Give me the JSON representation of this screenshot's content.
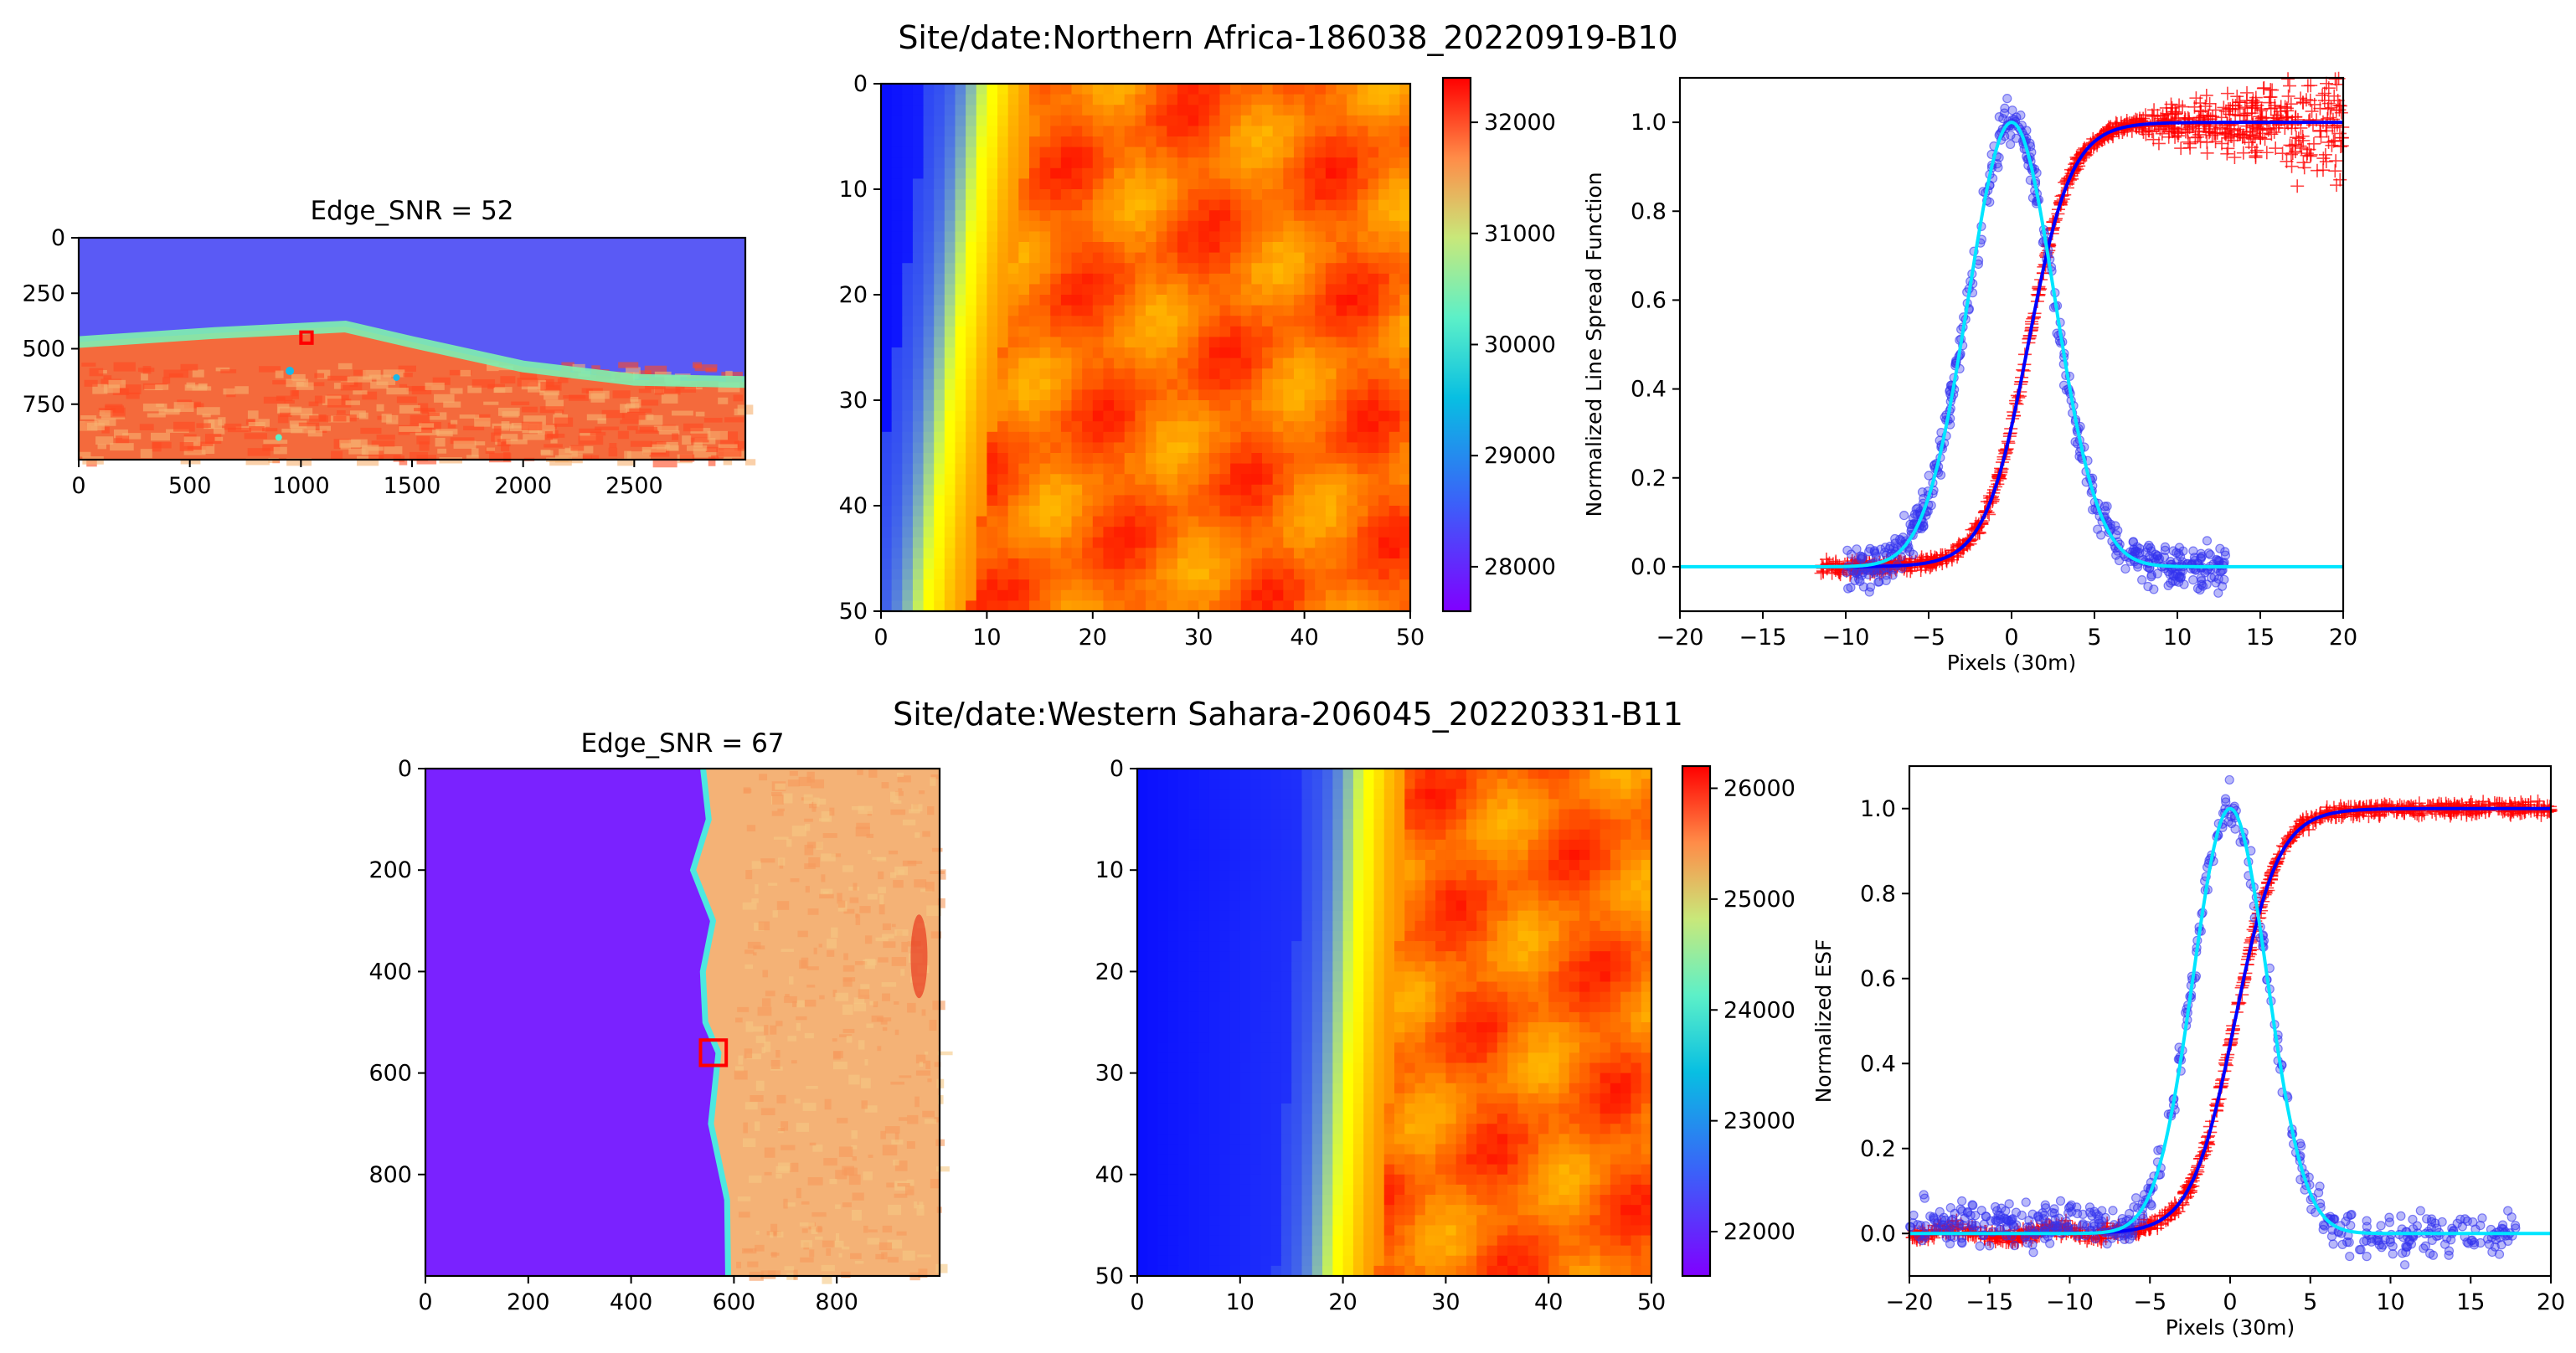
{
  "chart_data": [
    {
      "type": "heatmap",
      "panel": "overview",
      "suptitle": "Site/date:Northern Africa-186038_20220919-B10",
      "title": "Edge_SNR = 52",
      "xlim": [
        0,
        3000
      ],
      "ylim": [
        1000,
        0
      ],
      "xticks": [
        "0",
        "500",
        "1000",
        "1500",
        "2000",
        "2500"
      ],
      "yticks": [
        "0",
        "250",
        "500",
        "750"
      ],
      "xtick_values": [
        0,
        500,
        1000,
        1500,
        2000,
        2500
      ],
      "ytick_values": [
        0,
        250,
        500,
        750
      ],
      "colormap": "rainbow",
      "edge_profile": [
        [
          0,
          470
        ],
        [
          600,
          430
        ],
        [
          1200,
          400
        ],
        [
          1500,
          470
        ],
        [
          2000,
          580
        ],
        [
          2500,
          640
        ],
        [
          3000,
          650
        ]
      ],
      "roi_box": {
        "x": [
          1000,
          1050
        ],
        "y": [
          425,
          475
        ],
        "color": "#ff0000"
      }
    },
    {
      "type": "heatmap",
      "panel": "zoom",
      "xlim": [
        0,
        50
      ],
      "ylim": [
        50,
        0
      ],
      "xticks": [
        "0",
        "10",
        "20",
        "30",
        "40",
        "50"
      ],
      "yticks": [
        "0",
        "10",
        "20",
        "30",
        "40",
        "50"
      ],
      "xtick_values": [
        0,
        10,
        20,
        30,
        40,
        50
      ],
      "ytick_values": [
        0,
        10,
        20,
        30,
        40,
        50
      ],
      "edge_column_top": 11,
      "edge_column_bottom": 5,
      "value_range": [
        27600,
        32400
      ],
      "colorbar_ticks": [
        "28000",
        "29000",
        "30000",
        "31000",
        "32000"
      ],
      "colorbar_values": [
        28000,
        29000,
        30000,
        31000,
        32000
      ]
    },
    {
      "type": "scatter",
      "panel": "profile",
      "xlabel": "Pixels (30m)",
      "ylabel": "Normalized Line Spread Function",
      "xlim": [
        -20,
        20
      ],
      "ylim": [
        -0.1,
        1.1
      ],
      "xticks": [
        "−20",
        "−15",
        "−10",
        "−5",
        "0",
        "5",
        "10",
        "15",
        "20"
      ],
      "yticks": [
        "0.0",
        "0.2",
        "0.4",
        "0.6",
        "0.8",
        "1.0"
      ],
      "xtick_values": [
        -20,
        -15,
        -10,
        -5,
        0,
        5,
        10,
        15,
        20
      ],
      "ytick_values": [
        0,
        0.2,
        0.4,
        0.6,
        0.8,
        1.0
      ],
      "grid": true,
      "series": [
        {
          "name": "ESF samples",
          "marker": "+",
          "color": "#ff0000",
          "x_range": [
            -11.5,
            20
          ],
          "center": 1.0,
          "width": 2.2
        },
        {
          "name": "ESF fit",
          "style": "line",
          "color": "#0000ff",
          "x_range": [
            -11.5,
            20
          ],
          "center": 1.0,
          "width": 2.2
        },
        {
          "name": "LSF samples",
          "marker": "o",
          "color": "#3333ee",
          "x_range": [
            -10,
            13
          ],
          "sigma": 2.6
        },
        {
          "name": "LSF fit",
          "style": "line",
          "color": "#00e5ff",
          "x_range": [
            -20,
            20
          ],
          "sigma": 2.6
        }
      ]
    },
    {
      "type": "heatmap",
      "panel": "overview",
      "suptitle": "Site/date:Western Sahara-206045_20220331-B11",
      "title": "Edge_SNR = 67",
      "xlim": [
        0,
        1000
      ],
      "ylim": [
        1000,
        0
      ],
      "xticks": [
        "0",
        "200",
        "400",
        "600",
        "800"
      ],
      "yticks": [
        "0",
        "200",
        "400",
        "600",
        "800"
      ],
      "xtick_values": [
        0,
        200,
        400,
        600,
        800
      ],
      "ytick_values": [
        0,
        200,
        400,
        600,
        800
      ],
      "colormap": "rainbow",
      "edge_profile": [
        [
          0,
          540
        ],
        [
          100,
          545
        ],
        [
          200,
          530
        ],
        [
          300,
          550
        ],
        [
          400,
          545
        ],
        [
          500,
          545
        ],
        [
          560,
          560
        ],
        [
          700,
          565
        ],
        [
          850,
          580
        ],
        [
          1000,
          590
        ]
      ],
      "roi_box": {
        "x": [
          535,
          585
        ],
        "y": [
          535,
          585
        ],
        "color": "#ff0000"
      }
    },
    {
      "type": "heatmap",
      "panel": "zoom",
      "xlim": [
        0,
        50
      ],
      "ylim": [
        50,
        0
      ],
      "xticks": [
        "0",
        "10",
        "20",
        "30",
        "40",
        "50"
      ],
      "yticks": [
        "0",
        "10",
        "20",
        "30",
        "40",
        "50"
      ],
      "xtick_values": [
        0,
        10,
        20,
        30,
        40,
        50
      ],
      "ytick_values": [
        0,
        10,
        20,
        30,
        40,
        50
      ],
      "edge_column_top": 23,
      "edge_column_bottom": 20,
      "value_range": [
        21600,
        26200
      ],
      "colorbar_ticks": [
        "22000",
        "23000",
        "24000",
        "25000",
        "26000"
      ],
      "colorbar_values": [
        22000,
        23000,
        24000,
        25000,
        26000
      ]
    },
    {
      "type": "scatter",
      "panel": "profile",
      "xlabel": "Pixels (30m)",
      "ylabel": "Normalized ESF",
      "xlim": [
        -20,
        20
      ],
      "ylim": [
        -0.1,
        1.1
      ],
      "xticks": [
        "−20",
        "−15",
        "−10",
        "−5",
        "0",
        "5",
        "10",
        "15",
        "20"
      ],
      "yticks": [
        "0.0",
        "0.2",
        "0.4",
        "0.6",
        "0.8",
        "1.0"
      ],
      "xtick_values": [
        -20,
        -15,
        -10,
        -5,
        0,
        5,
        10,
        15,
        20
      ],
      "ytick_values": [
        0,
        0.2,
        0.4,
        0.6,
        0.8,
        1.0
      ],
      "grid": true,
      "series": [
        {
          "name": "ESF samples",
          "marker": "+",
          "color": "#ff0000",
          "x_range": [
            -20,
            20
          ],
          "center": 0.3,
          "width": 2.3
        },
        {
          "name": "ESF fit",
          "style": "line",
          "color": "#0000ff",
          "x_range": [
            -20,
            20
          ],
          "center": 0.3,
          "width": 2.3
        },
        {
          "name": "LSF samples",
          "marker": "o",
          "color": "#3333ee",
          "x_range": [
            -20,
            18
          ],
          "sigma": 2.3
        },
        {
          "name": "LSF fit",
          "style": "line",
          "color": "#00e5ff",
          "x_range": [
            -20,
            20
          ],
          "sigma": 2.3
        }
      ]
    }
  ]
}
